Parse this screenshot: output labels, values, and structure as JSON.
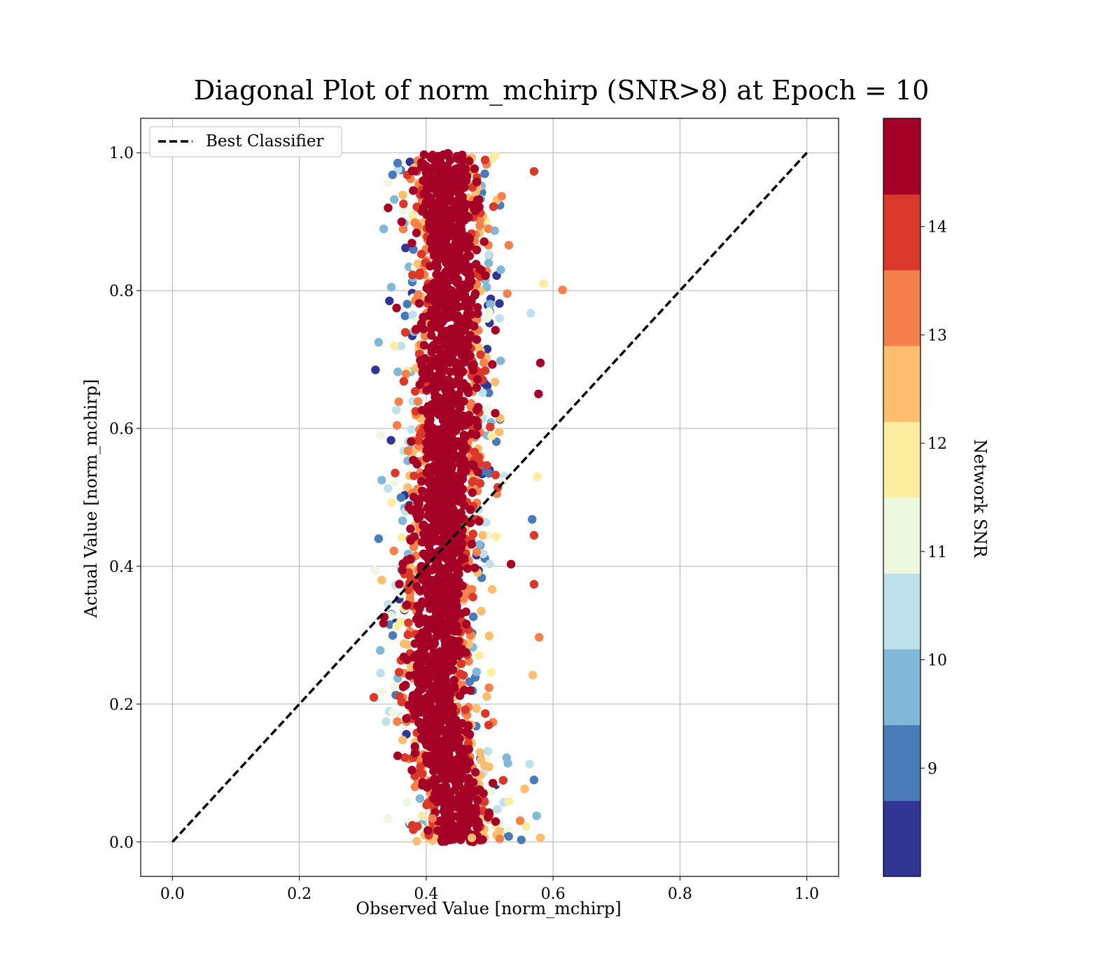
{
  "chart_data": {
    "type": "scatter",
    "title": "Diagonal Plot of norm_mchirp (SNR>8) at Epoch = 10",
    "xlabel": "Observed Value [norm_mchirp]",
    "ylabel": "Actual Value [norm_mchirp]",
    "xlim": [
      -0.05,
      1.05
    ],
    "ylim": [
      -0.05,
      1.05
    ],
    "xticks": [
      "0.0",
      "0.2",
      "0.4",
      "0.6",
      "0.8",
      "1.0"
    ],
    "yticks": [
      "0.0",
      "0.2",
      "0.4",
      "0.6",
      "0.8",
      "1.0"
    ],
    "xtick_values": [
      0.0,
      0.2,
      0.4,
      0.6,
      0.8,
      1.0
    ],
    "ytick_values": [
      0.0,
      0.2,
      0.4,
      0.6,
      0.8,
      1.0
    ],
    "grid": true,
    "legend": {
      "placement": "upper-left",
      "entries": [
        {
          "label": "Best Classifier",
          "style": "dashed",
          "color": "#000000"
        }
      ]
    },
    "series": [
      {
        "name": "Best Classifier",
        "kind": "line",
        "style": "dashed",
        "x": [
          0.0,
          1.0
        ],
        "y": [
          0.0,
          1.0
        ]
      },
      {
        "kind": "points",
        "color_by": "Network SNR",
        "approx_count": 20000,
        "description_data": {
          "x_center_at_y": [
            [
              0.05,
              0.45
            ],
            [
              0.2,
              0.41
            ],
            [
              0.5,
              0.43
            ],
            [
              0.8,
              0.44
            ],
            [
              0.98,
              0.43
            ]
          ],
          "x_spread": 0.06,
          "y_range": [
            0.0,
            1.0
          ]
        },
        "points": [
          {
            "x": 0.32,
            "y": 0.685,
            "snr": 8.2
          },
          {
            "x": 0.615,
            "y": 0.801,
            "snr": 13.2
          },
          {
            "x": 0.585,
            "y": 0.81,
            "snr": 11.8
          },
          {
            "x": 0.58,
            "y": 0.695,
            "snr": 14.7
          },
          {
            "x": 0.577,
            "y": 0.65,
            "snr": 14.7
          },
          {
            "x": 0.58,
            "y": 0.006,
            "snr": 12.8
          },
          {
            "x": 0.578,
            "y": 0.297,
            "snr": 13.0
          },
          {
            "x": 0.568,
            "y": 0.242,
            "snr": 12.7
          },
          {
            "x": 0.57,
            "y": 0.973,
            "snr": 14.0
          },
          {
            "x": 0.565,
            "y": 0.767,
            "snr": 10.2
          },
          {
            "x": 0.575,
            "y": 0.53,
            "snr": 11.5
          },
          {
            "x": 0.55,
            "y": 0.003,
            "snr": 8.8
          },
          {
            "x": 0.53,
            "y": 0.008,
            "snr": 9.2
          },
          {
            "x": 0.485,
            "y": 0.003,
            "snr": 14.8
          },
          {
            "x": 0.472,
            "y": 0.006,
            "snr": 12.6
          },
          {
            "x": 0.41,
            "y": 0.034,
            "snr": 13.4
          },
          {
            "x": 0.355,
            "y": 0.125,
            "snr": 14.6
          },
          {
            "x": 0.325,
            "y": 0.725,
            "snr": 10.0
          },
          {
            "x": 0.328,
            "y": 0.59,
            "snr": 11.2
          },
          {
            "x": 0.33,
            "y": 0.525,
            "snr": 9.6
          },
          {
            "x": 0.325,
            "y": 0.44,
            "snr": 9.0
          },
          {
            "x": 0.33,
            "y": 0.38,
            "snr": 12.6
          },
          {
            "x": 0.328,
            "y": 0.245,
            "snr": 10.6
          },
          {
            "x": 0.355,
            "y": 0.985,
            "snr": 9.2
          },
          {
            "x": 0.347,
            "y": 0.968,
            "snr": 9.0
          },
          {
            "x": 0.34,
            "y": 0.92,
            "snr": 14.3
          },
          {
            "x": 0.345,
            "y": 0.805,
            "snr": 10.0
          },
          {
            "x": 0.342,
            "y": 0.785,
            "snr": 8.3
          },
          {
            "x": 0.567,
            "y": 0.468,
            "snr": 9.0
          },
          {
            "x": 0.57,
            "y": 0.445,
            "snr": 13.8
          },
          {
            "x": 0.57,
            "y": 0.374,
            "snr": 13.6
          },
          {
            "x": 0.563,
            "y": 0.113,
            "snr": 10.4
          },
          {
            "x": 0.57,
            "y": 0.09,
            "snr": 9.1
          },
          {
            "x": 0.574,
            "y": 0.038,
            "snr": 9.6
          }
        ]
      }
    ],
    "colorbar": {
      "label": "Network SNR",
      "ticks": [
        "9",
        "10",
        "11",
        "12",
        "13",
        "14"
      ],
      "tick_values": [
        9,
        10,
        11,
        12,
        13,
        14
      ],
      "range": [
        8.0,
        15.0
      ],
      "bins": [
        {
          "from": 8.0,
          "to": 8.7,
          "color": "#313695"
        },
        {
          "from": 8.7,
          "to": 9.4,
          "color": "#4a7ab7"
        },
        {
          "from": 9.4,
          "to": 10.1,
          "color": "#81b8d8"
        },
        {
          "from": 10.1,
          "to": 10.8,
          "color": "#bfe1ec"
        },
        {
          "from": 10.8,
          "to": 11.5,
          "color": "#eef7df"
        },
        {
          "from": 11.5,
          "to": 12.2,
          "color": "#fdeda1"
        },
        {
          "from": 12.2,
          "to": 12.9,
          "color": "#fdbe70"
        },
        {
          "from": 12.9,
          "to": 13.6,
          "color": "#f5804c"
        },
        {
          "from": 13.6,
          "to": 14.3,
          "color": "#d9382a"
        },
        {
          "from": 14.3,
          "to": 15.0,
          "color": "#a50026"
        }
      ]
    }
  }
}
